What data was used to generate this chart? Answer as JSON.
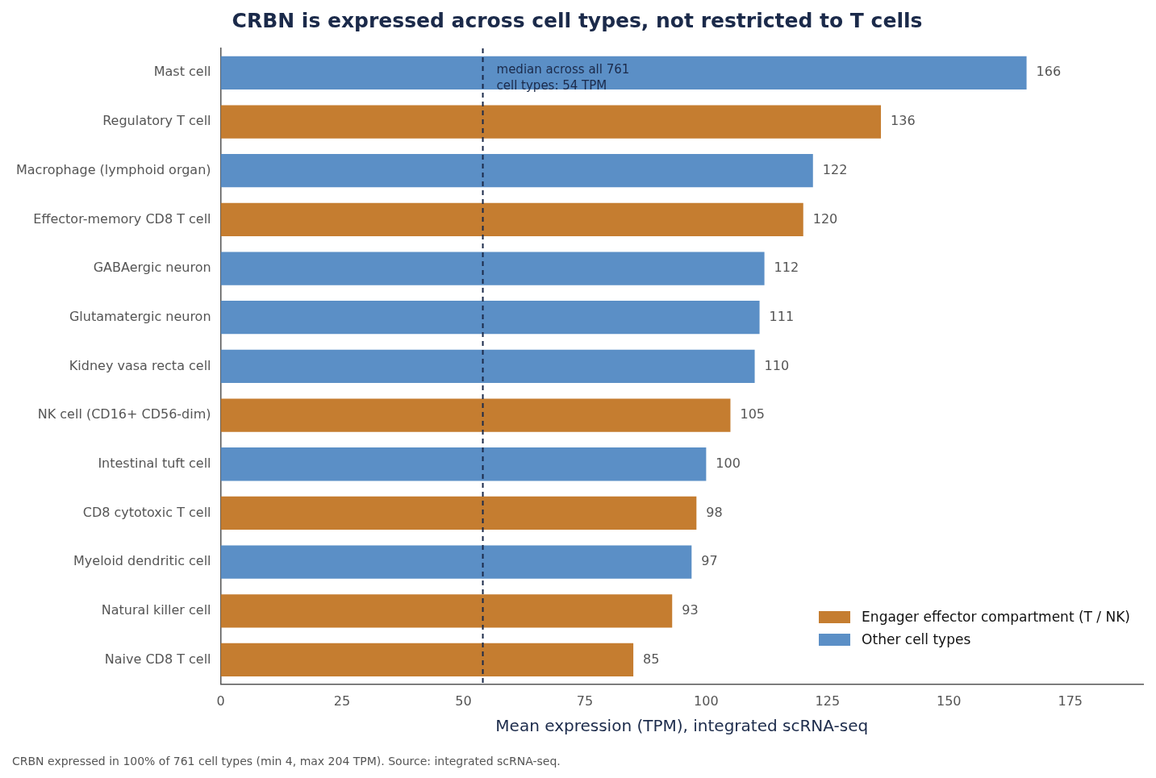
{
  "chart_data": {
    "type": "bar",
    "orientation": "horizontal",
    "stacked": true,
    "title": "CRBN is expressed across cell types, not restricted to T cells",
    "xlabel": "Mean expression (TPM), integrated scRNA-seq",
    "categories": [
      "Mast cell",
      "Regulatory T cell",
      "Macrophage (lymphoid organ)",
      "Effector-memory CD8 T cell",
      "GABAergic neuron",
      "Glutamatergic neuron",
      "Kidney vasa recta cell",
      "NK cell (CD16+ CD56-dim)",
      "Intestinal tuft cell",
      "CD8 cytotoxic T cell",
      "Myeloid dendritic cell",
      "Natural killer cell",
      "Naive CD8 T cell"
    ],
    "series": [
      {
        "name": "Engager effector compartment (T / NK)",
        "color": "#c57d30",
        "values": [
          null,
          136,
          null,
          120,
          null,
          null,
          null,
          105,
          null,
          98,
          null,
          93,
          85
        ]
      },
      {
        "name": "Other cell types",
        "color": "#5b8fc6",
        "values": [
          166,
          null,
          122,
          null,
          112,
          111,
          110,
          null,
          100,
          null,
          97,
          null,
          null
        ]
      }
    ],
    "xlim": [
      0,
      190
    ],
    "xticks": [
      0,
      25,
      50,
      75,
      100,
      125,
      150,
      175
    ],
    "ref_lines": [
      {
        "axis": "x",
        "value": 54,
        "label": "median across all 761 cell types: 54 TPM",
        "color": "#1b2a4a",
        "line_style": "dashed"
      }
    ],
    "data_labels": true,
    "legend": "bottom right",
    "grid": false,
    "annotations": [
      "CRBN expressed in 100% of 761 cell types (min 4, max 204 TPM). Source: integrated scRNA-seq."
    ]
  }
}
